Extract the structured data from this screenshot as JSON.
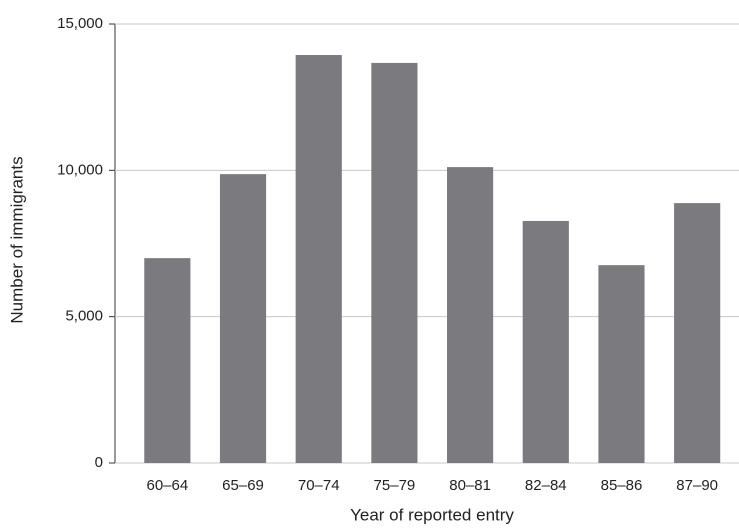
{
  "chart_data": {
    "type": "bar",
    "x_label": "Year of reported entry",
    "y_label": "Number of immigrants",
    "categories": [
      "60–64",
      "65–69",
      "70–74",
      "75–79",
      "80–81",
      "82–84",
      "85–86",
      "87–90"
    ],
    "values": [
      7000,
      9870,
      13940,
      13670,
      10110,
      8270,
      6760,
      8880
    ],
    "color": "#7b7b7f",
    "ylim": [
      0,
      15000
    ],
    "yticks": [
      0,
      {
        "value": 5000,
        "label": "5,000"
      },
      {
        "value": 10000,
        "label": "10,000"
      },
      {
        "value": 15000,
        "label": "15,000"
      }
    ],
    "grid": true
  }
}
